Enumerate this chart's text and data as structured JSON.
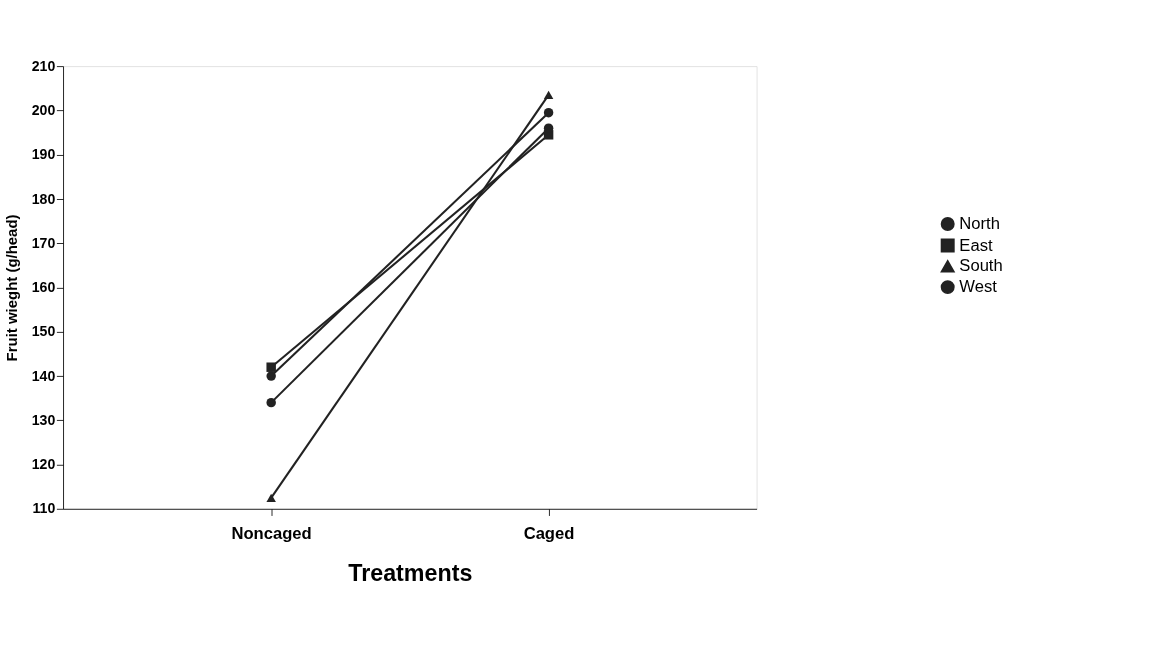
{
  "chart_data": {
    "type": "line",
    "xlabel": "Treatments",
    "ylabel": "Fruit wieght (g/head)",
    "categories": [
      "Noncaged",
      "Caged"
    ],
    "series": [
      {
        "name": "North",
        "color": "#222222",
        "marker": "circle",
        "values": [
          140,
          199.5
        ]
      },
      {
        "name": "East",
        "color": "#222222",
        "marker": "square",
        "values": [
          142,
          194.5
        ]
      },
      {
        "name": "South",
        "color": "#222222",
        "marker": "triangle",
        "values": [
          112.5,
          203.5
        ]
      },
      {
        "name": "West",
        "color": "#222222",
        "marker": "circle",
        "values": [
          134,
          196
        ]
      }
    ],
    "ylim": [
      110,
      210
    ],
    "yticks": [
      110,
      120,
      130,
      140,
      150,
      160,
      170,
      180,
      190,
      200,
      210
    ],
    "grid": false,
    "legend": "right",
    "line_style": "solid"
  }
}
